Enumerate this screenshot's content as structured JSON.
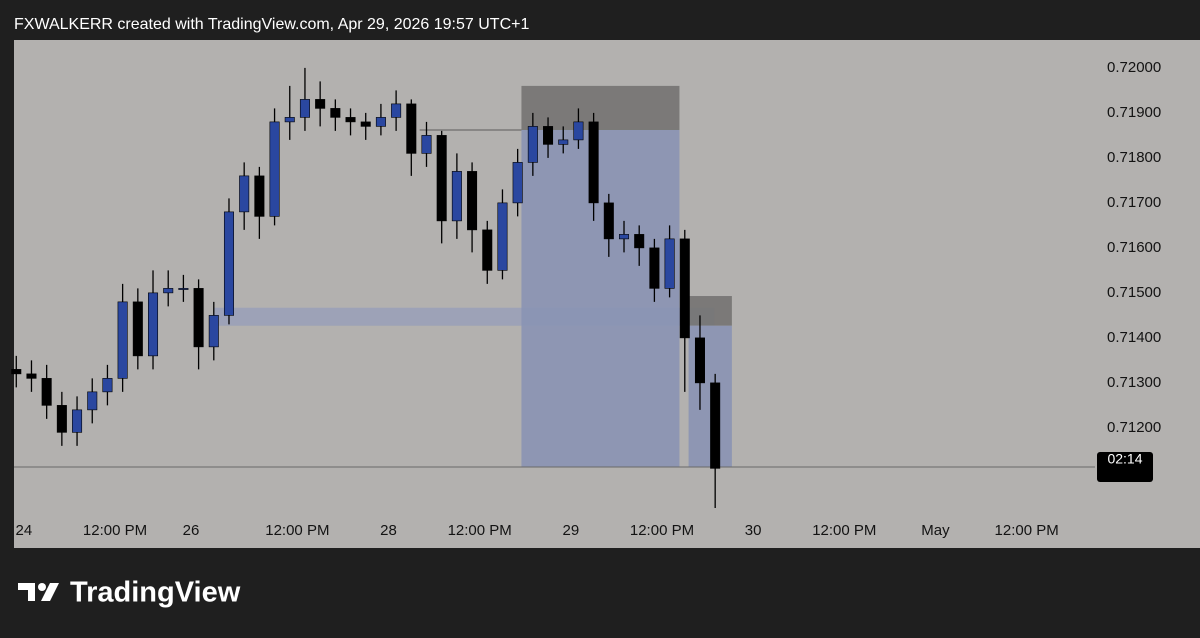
{
  "header": "FXWALKERR created with TradingView.com, Apr 29, 2026 19:57 UTC+1",
  "brand": "TradingView",
  "chart_data": {
    "type": "candlestick",
    "x": [
      -1,
      1,
      3,
      5,
      7,
      9,
      11,
      13,
      15,
      17,
      19,
      21,
      23,
      25,
      27,
      29,
      31,
      33,
      35,
      37,
      39,
      41,
      43,
      45,
      47,
      49,
      51,
      53,
      55,
      57,
      59,
      61,
      63,
      65,
      67,
      69,
      71,
      73,
      75,
      77,
      79,
      81,
      83,
      85,
      87,
      89,
      91
    ],
    "open": [
      0.7133,
      0.7132,
      0.7131,
      0.7125,
      0.7119,
      0.7124,
      0.7128,
      0.7131,
      0.7148,
      0.7136,
      0.715,
      0.7151,
      0.7151,
      0.7138,
      0.7145,
      0.7168,
      0.7176,
      0.7167,
      0.7188,
      0.7189,
      0.7193,
      0.7191,
      0.7189,
      0.7188,
      0.7187,
      0.7189,
      0.7192,
      0.7181,
      0.7185,
      0.7166,
      0.7177,
      0.7164,
      0.7155,
      0.717,
      0.7179,
      0.7187,
      0.7183,
      0.7184,
      0.7188,
      0.717,
      0.7162,
      0.7163,
      0.716,
      0.7151,
      0.7162,
      0.714,
      0.713
    ],
    "high": [
      0.7136,
      0.7135,
      0.7134,
      0.7128,
      0.7127,
      0.7131,
      0.7134,
      0.7152,
      0.7151,
      0.7155,
      0.7155,
      0.7154,
      0.7153,
      0.7148,
      0.7171,
      0.7179,
      0.7178,
      0.7191,
      0.7196,
      0.72,
      0.7197,
      0.7193,
      0.7191,
      0.719,
      0.7192,
      0.7195,
      0.7193,
      0.7188,
      0.7186,
      0.7181,
      0.7179,
      0.7166,
      0.7173,
      0.7182,
      0.719,
      0.7189,
      0.7187,
      0.7191,
      0.719,
      0.7172,
      0.7166,
      0.7165,
      0.7162,
      0.7165,
      0.7164,
      0.7145,
      0.7132
    ],
    "low": [
      0.7129,
      0.7128,
      0.7122,
      0.7116,
      0.7116,
      0.7121,
      0.7125,
      0.7128,
      0.7133,
      0.7133,
      0.7147,
      0.7148,
      0.7133,
      0.7135,
      0.7143,
      0.7164,
      0.7162,
      0.7165,
      0.7184,
      0.7186,
      0.7187,
      0.7186,
      0.7185,
      0.7184,
      0.7185,
      0.7186,
      0.7176,
      0.7178,
      0.7161,
      0.7162,
      0.7159,
      0.7152,
      0.7153,
      0.7167,
      0.7176,
      0.718,
      0.7181,
      0.7182,
      0.7166,
      0.7158,
      0.7159,
      0.7156,
      0.7148,
      0.7149,
      0.7128,
      0.7124,
      0.71022
    ],
    "close": [
      0.7132,
      0.7131,
      0.7125,
      0.7119,
      0.7124,
      0.7128,
      0.7131,
      0.7148,
      0.7136,
      0.715,
      0.7151,
      0.7151,
      0.7138,
      0.7145,
      0.7168,
      0.7176,
      0.7167,
      0.7188,
      0.7189,
      0.7193,
      0.7191,
      0.7189,
      0.7188,
      0.7187,
      0.7189,
      0.7192,
      0.7181,
      0.7185,
      0.7166,
      0.7177,
      0.7164,
      0.7155,
      0.717,
      0.7179,
      0.7187,
      0.7183,
      0.7184,
      0.7188,
      0.717,
      0.7162,
      0.7163,
      0.716,
      0.7151,
      0.7162,
      0.714,
      0.713,
      0.7111
    ],
    "up_color": "#2a47a0",
    "down_color": "#000000",
    "xlim": [
      -1.3,
      141
    ],
    "xticks": [
      {
        "value": 0,
        "label": "24"
      },
      {
        "value": 12,
        "label": "12:00 PM"
      },
      {
        "value": 22,
        "label": "26"
      },
      {
        "value": 36,
        "label": "12:00 PM"
      },
      {
        "value": 48,
        "label": "28"
      },
      {
        "value": 60,
        "label": "12:00 PM"
      },
      {
        "value": 72,
        "label": "29"
      },
      {
        "value": 84,
        "label": "12:00 PM"
      },
      {
        "value": 96,
        "label": "30"
      },
      {
        "value": 108,
        "label": "12:00 PM"
      },
      {
        "value": 120,
        "label": "May"
      },
      {
        "value": 132,
        "label": "12:00 PM"
      }
    ],
    "ylim": [
      0.70933,
      0.72062
    ],
    "yticks": [
      {
        "value": 0.712,
        "label": "0.71200"
      },
      {
        "value": 0.713,
        "label": "0.71300"
      },
      {
        "value": 0.714,
        "label": "0.71400"
      },
      {
        "value": 0.715,
        "label": "0.71500"
      },
      {
        "value": 0.716,
        "label": "0.71600"
      },
      {
        "value": 0.717,
        "label": "0.71700"
      },
      {
        "value": 0.718,
        "label": "0.71800"
      },
      {
        "value": 0.719,
        "label": "0.71900"
      },
      {
        "value": 0.72,
        "label": "0.72000"
      }
    ],
    "zones": [
      {
        "x": [
          25.1,
          90.9
        ],
        "y": [
          0.71427,
          0.71467
        ],
        "color": "#9aa1b8"
      },
      {
        "x": [
          65.5,
          86.3
        ],
        "y": [
          0.71862,
          0.7196
        ],
        "color": "#747372"
      },
      {
        "x": [
          65.5,
          86.3
        ],
        "y": [
          0.71113,
          0.71862
        ],
        "color": "#8a93b4"
      },
      {
        "x": [
          87.5,
          93.2
        ],
        "y": [
          0.71427,
          0.71493
        ],
        "color": "#747372"
      },
      {
        "x": [
          87.5,
          93.2
        ],
        "y": [
          0.71113,
          0.71427
        ],
        "color": "#8a93b4"
      }
    ],
    "level_line": {
      "x": [
        52.1,
        65.5
      ],
      "y": 0.71862,
      "color": "#6e6d6c"
    },
    "price_line": 0.71113,
    "countdown": "02:14"
  }
}
